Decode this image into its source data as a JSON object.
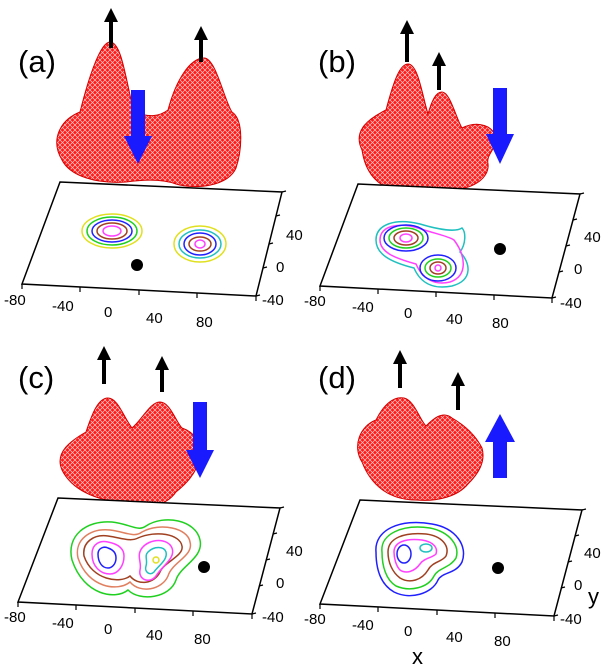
{
  "figure": {
    "panels": [
      {
        "label": "(a)",
        "large_arrow": "down",
        "small_arrow_count": 2
      },
      {
        "label": "(b)",
        "large_arrow": "down",
        "small_arrow_count": 2
      },
      {
        "label": "(c)",
        "large_arrow": "down",
        "small_arrow_count": 2
      },
      {
        "label": "(d)",
        "large_arrow": "up",
        "small_arrow_count": 2
      }
    ],
    "x_ticks": [
      "-80",
      "-40",
      "0",
      "40",
      "80"
    ],
    "y_ticks": [
      "40",
      "0",
      "-40"
    ],
    "x_axis_label": "x",
    "y_axis_label": "y",
    "colors": {
      "surface": "#ff1a1a",
      "surface_mesh": "#ffd0d0",
      "big_arrow": "#1a1aff",
      "small_arrow": "#000000",
      "dot": "#000000",
      "contours": [
        "#e0e020",
        "#20d020",
        "#2020ff",
        "#a04020",
        "#ff40ff",
        "#20c0c0",
        "#ff8000",
        "#000080"
      ]
    },
    "icons": [
      "up-arrow-icon",
      "down-arrow-icon"
    ]
  }
}
